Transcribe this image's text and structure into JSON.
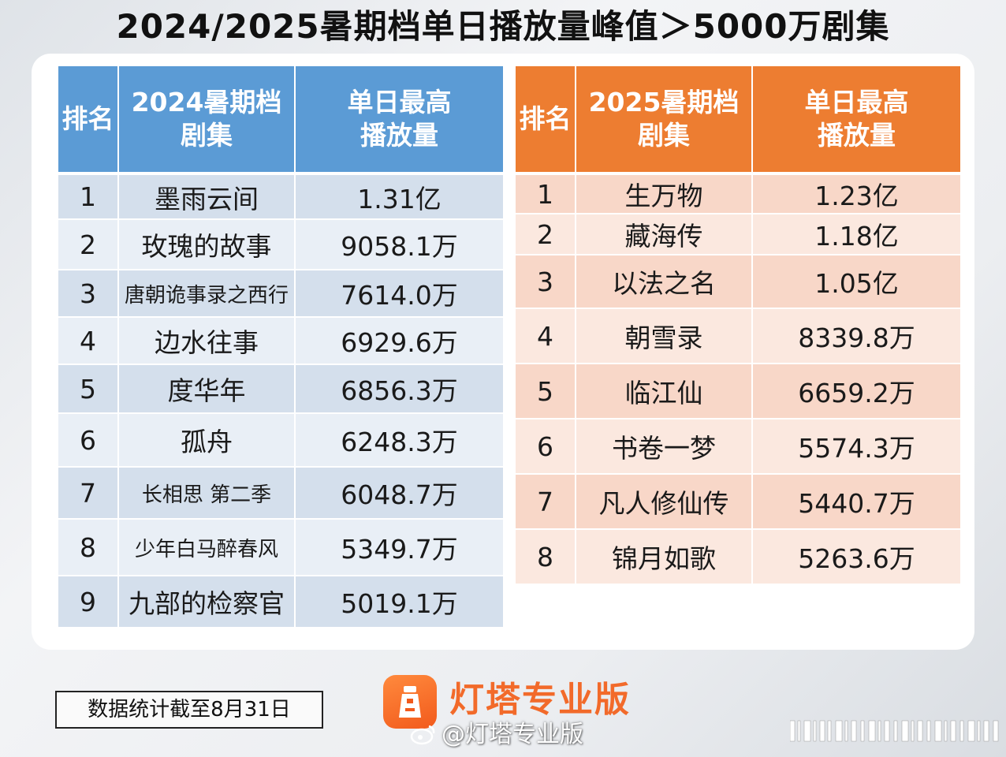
{
  "title": "2024/2025暑期档单日播放量峰值＞5000万剧集",
  "table_2024": {
    "headers": [
      "排名",
      "2024暑期档剧集",
      "单日最高播放量"
    ],
    "rows": [
      {
        "rank": "1",
        "drama": "墨雨云间",
        "peak": "1.31亿"
      },
      {
        "rank": "2",
        "drama": "玫瑰的故事",
        "peak": "9058.1万"
      },
      {
        "rank": "3",
        "drama": "唐朝诡事录之西行",
        "peak": "7614.0万"
      },
      {
        "rank": "4",
        "drama": "边水往事",
        "peak": "6929.6万"
      },
      {
        "rank": "5",
        "drama": "度华年",
        "peak": "6856.3万"
      },
      {
        "rank": "6",
        "drama": "孤舟",
        "peak": "6248.3万"
      },
      {
        "rank": "7",
        "drama": "长相思 第二季",
        "peak": "6048.7万"
      },
      {
        "rank": "8",
        "drama": "少年白马醉春风",
        "peak": "5349.7万"
      },
      {
        "rank": "9",
        "drama": "九部的检察官",
        "peak": "5019.1万"
      }
    ]
  },
  "table_2025": {
    "headers": [
      "排名",
      "2025暑期档剧集",
      "单日最高播放量"
    ],
    "rows": [
      {
        "rank": "1",
        "drama": "生万物",
        "peak": "1.23亿"
      },
      {
        "rank": "2",
        "drama": "藏海传",
        "peak": "1.18亿"
      },
      {
        "rank": "3",
        "drama": "以法之名",
        "peak": "1.05亿"
      },
      {
        "rank": "4",
        "drama": "朝雪录",
        "peak": "8339.8万"
      },
      {
        "rank": "5",
        "drama": "临江仙",
        "peak": "6659.2万"
      },
      {
        "rank": "6",
        "drama": "书卷一梦",
        "peak": "5574.3万"
      },
      {
        "rank": "7",
        "drama": "凡人修仙传",
        "peak": "5440.7万"
      },
      {
        "rank": "8",
        "drama": "锦月如歌",
        "peak": "5263.6万"
      }
    ]
  },
  "footnote": "数据统计截至8月31日",
  "brand": {
    "name": "灯塔专业版",
    "logo_icon": "lighthouse-icon"
  },
  "watermark": "@灯塔专业版",
  "colors": {
    "blue_header": "#5b9bd5",
    "orange_header": "#ed7d31",
    "brand_orange": "#f26a2a"
  }
}
